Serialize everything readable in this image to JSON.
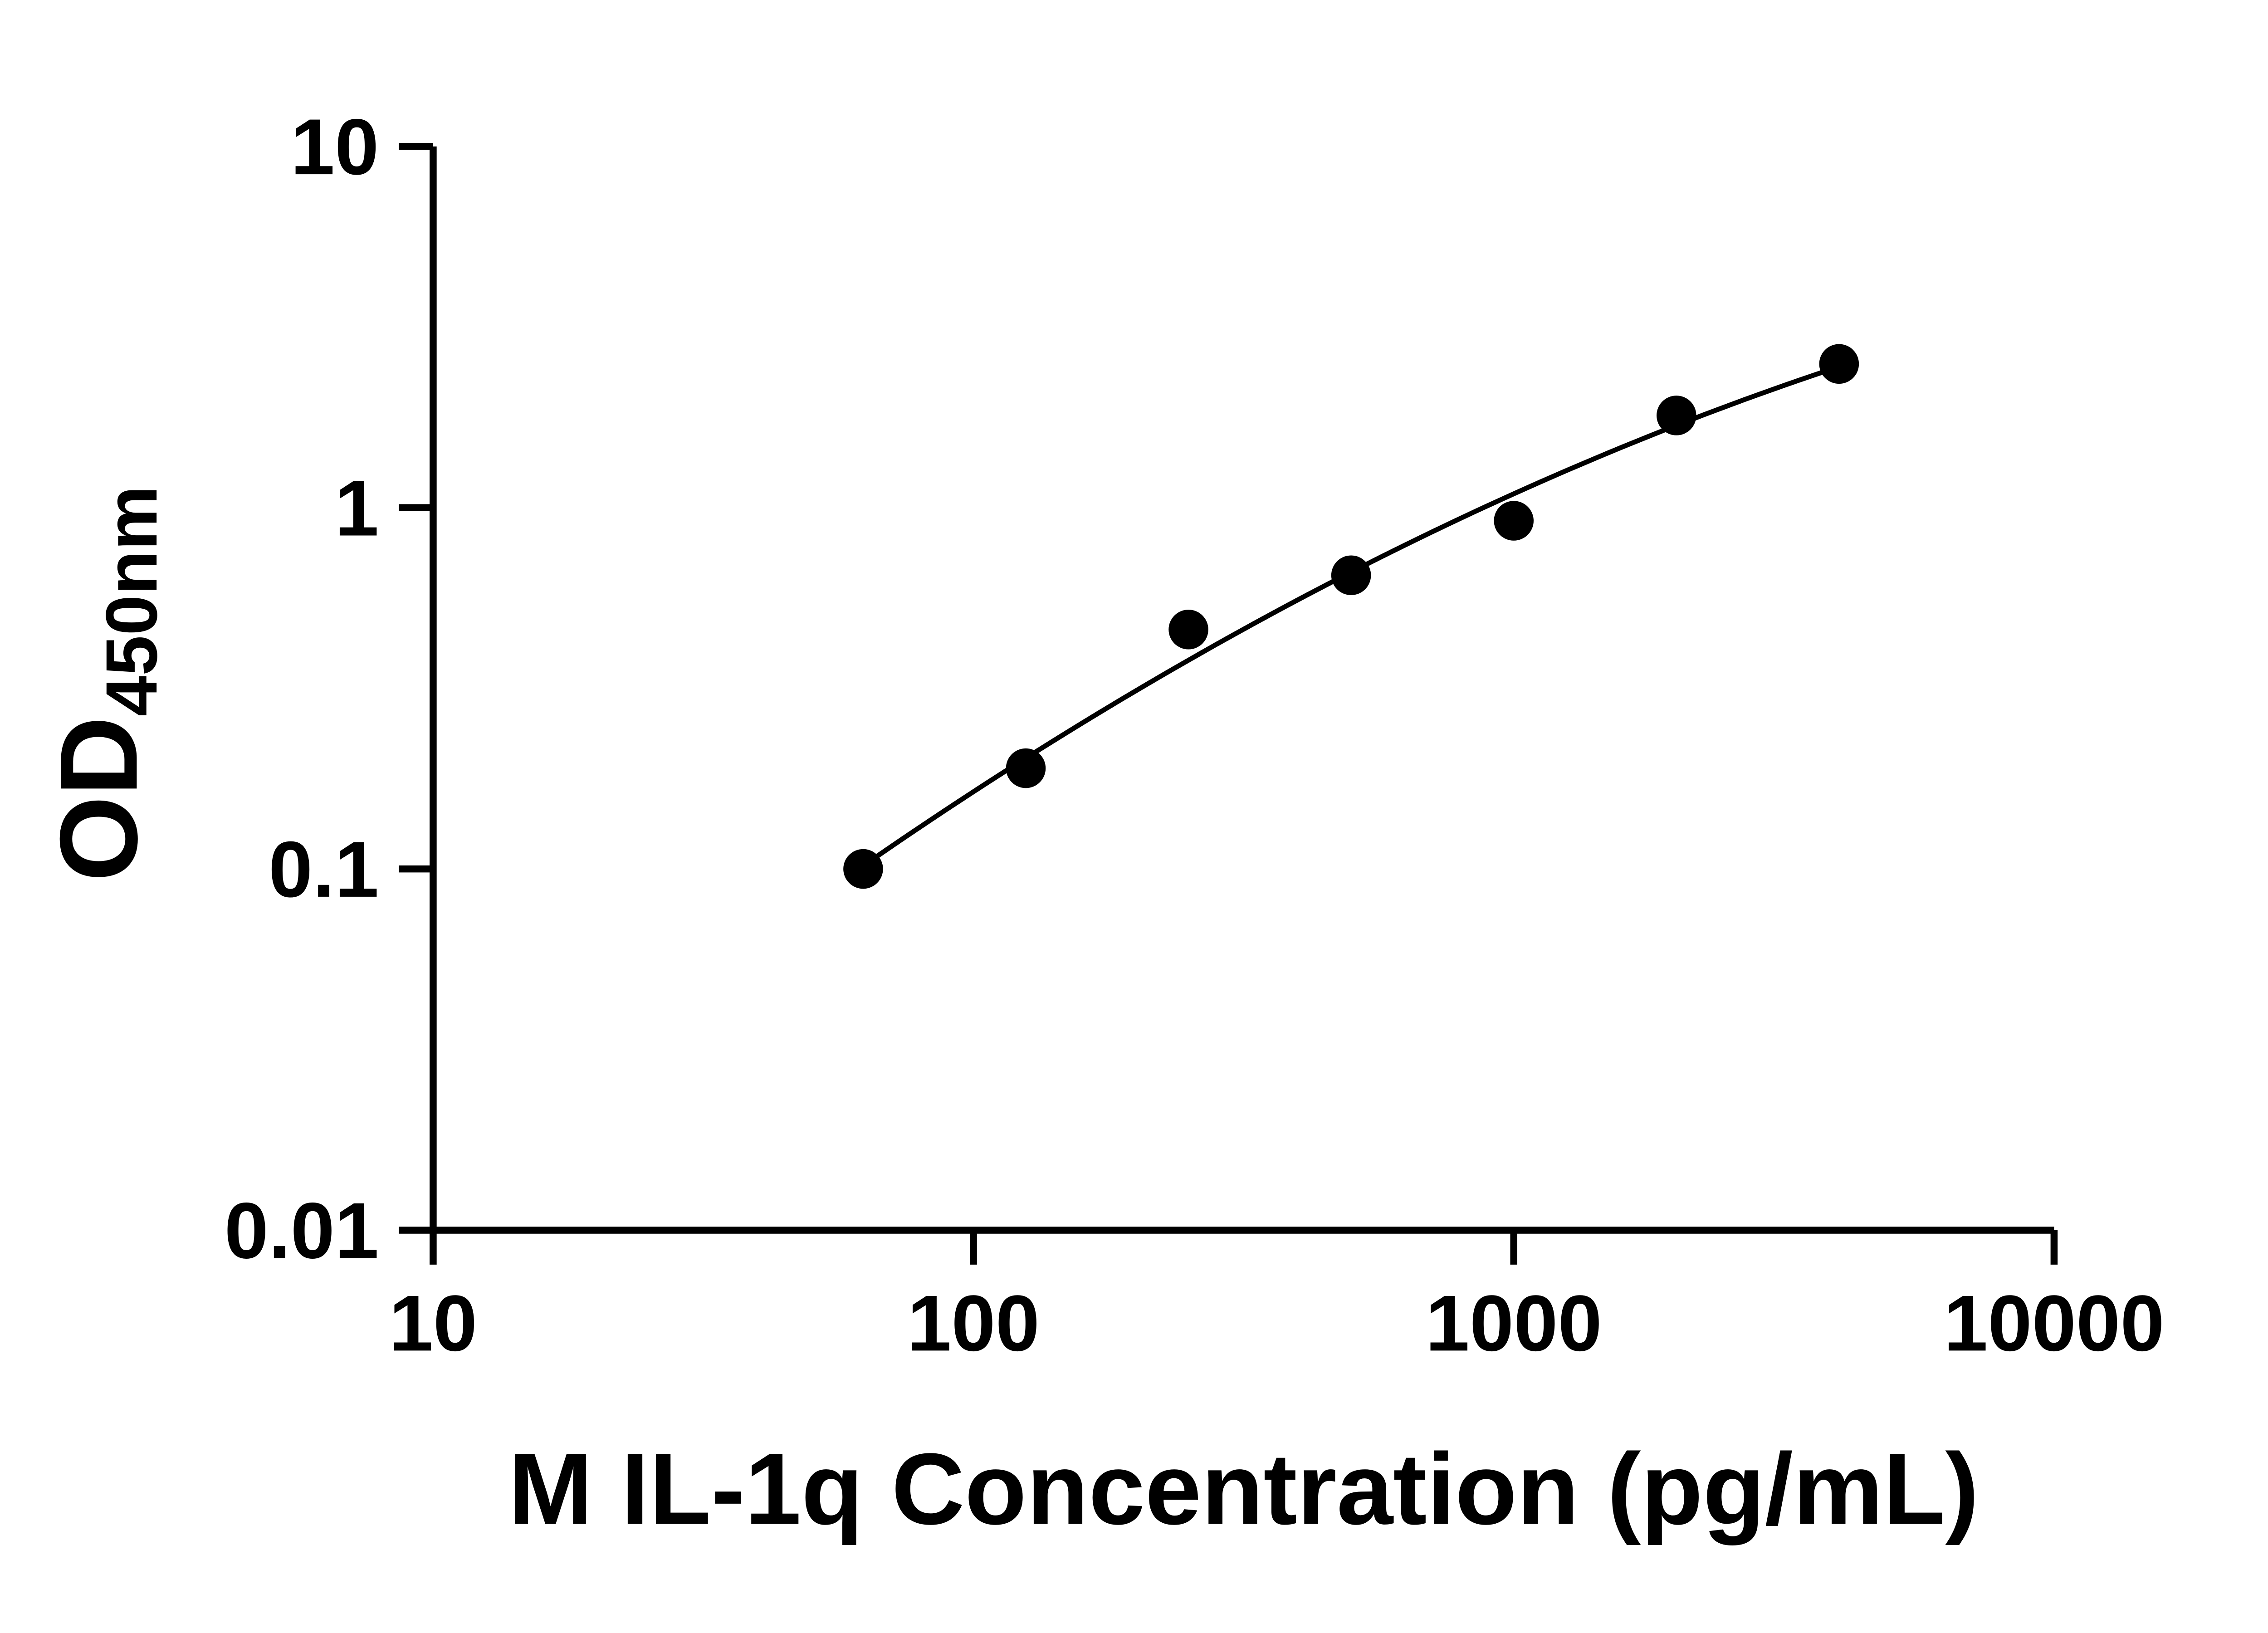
{
  "chart_data": {
    "type": "scatter",
    "title": "",
    "xlabel": "M IL-1q Concentration (pg/mL)",
    "ylabel_main": "OD",
    "ylabel_sub": "450nm",
    "x_scale": "log",
    "y_scale": "log",
    "xlim": [
      10,
      10000
    ],
    "ylim": [
      0.01,
      10
    ],
    "x_ticks": [
      10,
      100,
      1000,
      10000
    ],
    "y_ticks": [
      0.01,
      0.1,
      1,
      10
    ],
    "grid": false,
    "legend": "none",
    "x": [
      62.5,
      125,
      250,
      500,
      1000,
      2000,
      4000
    ],
    "y": [
      0.1,
      0.19,
      0.46,
      0.65,
      0.92,
      1.8,
      2.5
    ],
    "fit": "smooth-standard-curve",
    "marker_color": "#000000",
    "line_color": "#000000",
    "axis_color": "#000000",
    "background_color": "#ffffff"
  }
}
